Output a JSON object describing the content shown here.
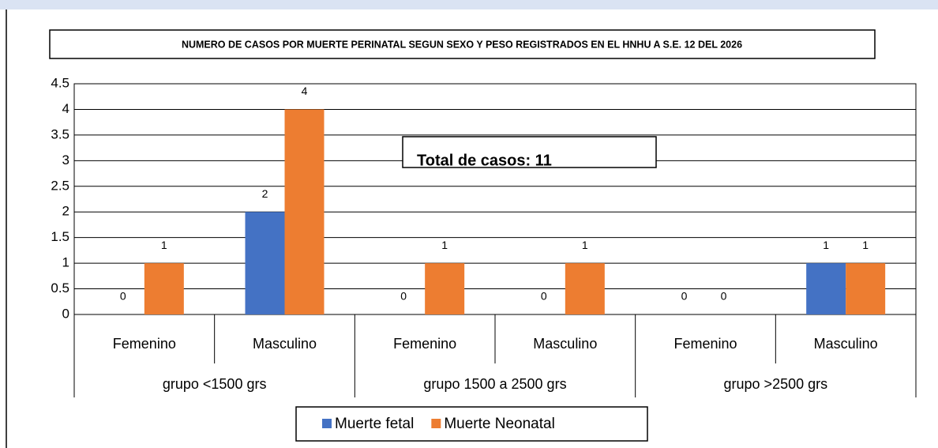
{
  "chart_data": {
    "type": "bar",
    "title": "NUMERO DE CASOS POR MUERTE PERINATAL SEGUN SEXO Y PESO REGISTRADOS EN EL HNHU A S.E. 12 DEL 2026",
    "annotation": "Total de casos: 11",
    "groups": [
      {
        "label": "grupo <1500 grs",
        "categories": [
          "Femenino",
          "Masculino"
        ]
      },
      {
        "label": "grupo 1500 a 2500 grs",
        "categories": [
          "Femenino",
          "Masculino"
        ]
      },
      {
        "label": "grupo >2500 grs",
        "categories": [
          "Femenino",
          "Masculino"
        ]
      }
    ],
    "series": [
      {
        "name": "Muerte fetal",
        "color": "#4472c4",
        "values": [
          0,
          2,
          0,
          0,
          0,
          1
        ]
      },
      {
        "name": "Muerte Neonatal",
        "color": "#ed7d31",
        "values": [
          1,
          4,
          1,
          1,
          0,
          1
        ]
      }
    ],
    "ylim": [
      0,
      4.5
    ],
    "yticks": [
      0,
      0.5,
      1,
      1.5,
      2,
      2.5,
      3,
      3.5,
      4,
      4.5
    ],
    "grid": true,
    "legend": "bottom"
  }
}
